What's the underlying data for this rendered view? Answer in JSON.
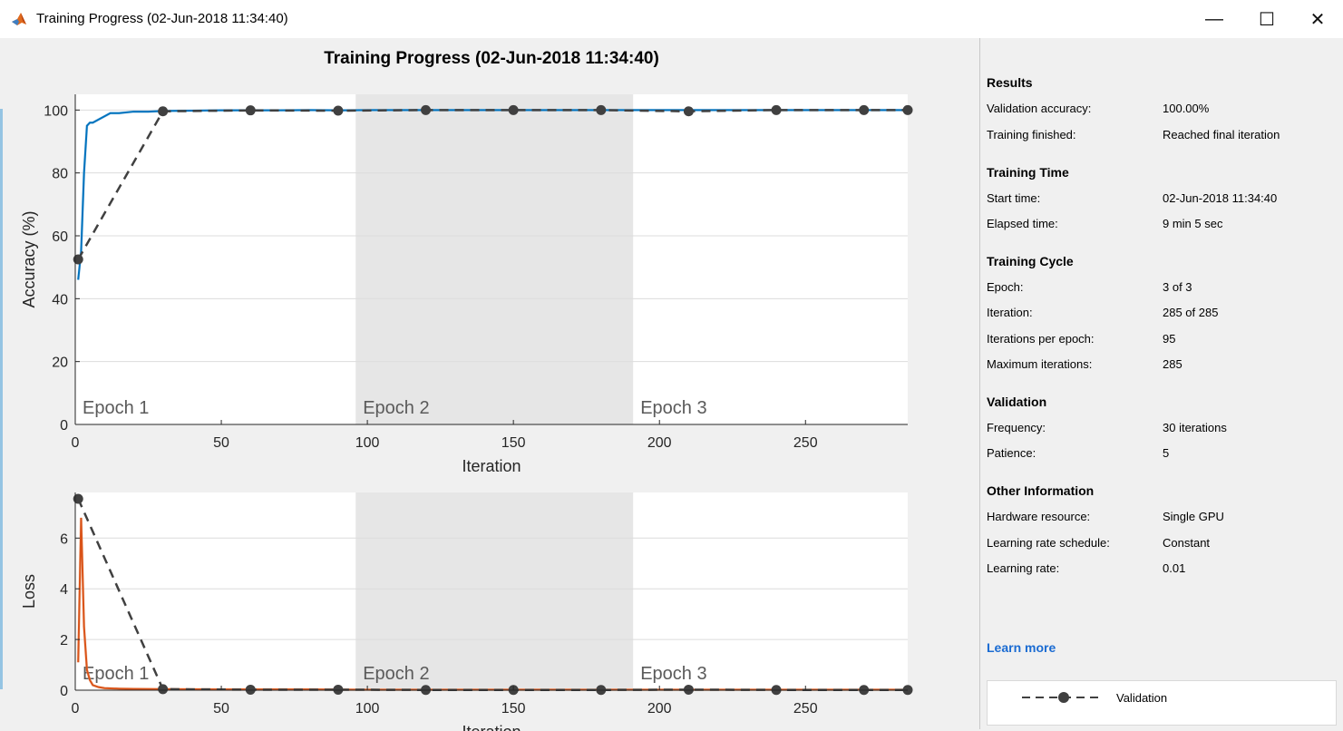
{
  "window": {
    "title": "Training Progress (02-Jun-2018 11:34:40)",
    "minimize_icon": "minimize-icon",
    "maximize_icon": "maximize-icon",
    "close_icon": "close-icon",
    "minimize_glyph": "—",
    "maximize_glyph": "☐",
    "close_glyph": "✕"
  },
  "colors": {
    "training": "#0072bd",
    "training_smoothed": "#9cc8ea",
    "loss": "#d95319",
    "loss_light": "#f2b089",
    "validation": "#404040",
    "epoch_shade": "#e6e6e6"
  },
  "chart_data": [
    {
      "type": "line",
      "title": "Training Progress (02-Jun-2018 11:34:40)",
      "xlabel": "Iteration",
      "ylabel": "Accuracy (%)",
      "xlim": [
        0,
        285
      ],
      "ylim": [
        0,
        105
      ],
      "xticks": [
        0,
        50,
        100,
        150,
        200,
        250
      ],
      "yticks": [
        0,
        20,
        40,
        60,
        80,
        100
      ],
      "grid": true,
      "epochs": [
        {
          "label": "Epoch 1",
          "start": 0,
          "end": 95,
          "shaded": false
        },
        {
          "label": "Epoch 2",
          "start": 96,
          "end": 191,
          "shaded": true
        },
        {
          "label": "Epoch 3",
          "start": 191,
          "end": 285,
          "shaded": false
        }
      ],
      "series": [
        {
          "role": "training",
          "x": [
            1,
            2,
            3,
            4,
            5,
            6,
            8,
            10,
            12,
            15,
            20,
            25,
            30,
            40,
            50,
            60,
            70,
            80,
            90,
            100,
            120,
            140,
            160,
            180,
            200,
            220,
            240,
            260,
            285
          ],
          "values": [
            46,
            55,
            80,
            95,
            96,
            96,
            97,
            98,
            99,
            99,
            99.5,
            99.5,
            99.7,
            99.8,
            99.9,
            99.9,
            99.9,
            100,
            99.9,
            100,
            100,
            100,
            100,
            100,
            100,
            100,
            100,
            100,
            100
          ]
        },
        {
          "role": "validation",
          "x": [
            1,
            30,
            60,
            90,
            120,
            150,
            180,
            210,
            240,
            270,
            285
          ],
          "values": [
            52.5,
            99.6,
            99.9,
            99.8,
            100,
            100,
            100,
            99.6,
            100,
            100,
            100
          ]
        }
      ]
    },
    {
      "type": "line",
      "xlabel": "Iteration",
      "ylabel": "Loss",
      "xlim": [
        0,
        285
      ],
      "ylim": [
        0,
        7.8
      ],
      "xticks": [
        0,
        50,
        100,
        150,
        200,
        250
      ],
      "yticks": [
        0,
        2,
        4,
        6
      ],
      "grid": true,
      "epochs": [
        {
          "label": "Epoch 1",
          "start": 0,
          "end": 95,
          "shaded": false
        },
        {
          "label": "Epoch 2",
          "start": 96,
          "end": 191,
          "shaded": true
        },
        {
          "label": "Epoch 3",
          "start": 191,
          "end": 285,
          "shaded": false
        }
      ],
      "series": [
        {
          "role": "training",
          "x": [
            1,
            2,
            3,
            4,
            5,
            6,
            8,
            10,
            15,
            20,
            30,
            50,
            80,
            100,
            150,
            200,
            250,
            285
          ],
          "values": [
            1.1,
            6.8,
            2.5,
            0.8,
            0.4,
            0.2,
            0.12,
            0.08,
            0.06,
            0.05,
            0.04,
            0.03,
            0.03,
            0.02,
            0.02,
            0.02,
            0.02,
            0.02
          ]
        },
        {
          "role": "validation",
          "x": [
            1,
            30,
            60,
            90,
            120,
            150,
            180,
            210,
            240,
            270,
            285
          ],
          "values": [
            7.55,
            0.04,
            0.02,
            0.02,
            0.01,
            0.01,
            0.01,
            0.02,
            0.01,
            0.01,
            0.01
          ]
        }
      ]
    }
  ],
  "panel": {
    "results": {
      "title": "Results",
      "validation_accuracy_label": "Validation accuracy:",
      "validation_accuracy_value": "100.00%",
      "training_finished_label": "Training finished:",
      "training_finished_value": "Reached final iteration"
    },
    "training_time": {
      "title": "Training Time",
      "start_time_label": "Start time:",
      "start_time_value": "02-Jun-2018 11:34:40",
      "elapsed_time_label": "Elapsed time:",
      "elapsed_time_value": "9 min 5 sec"
    },
    "training_cycle": {
      "title": "Training Cycle",
      "epoch_label": "Epoch:",
      "epoch_value": "3 of 3",
      "iteration_label": "Iteration:",
      "iteration_value": "285 of 285",
      "iterations_per_epoch_label": "Iterations per epoch:",
      "iterations_per_epoch_value": "95",
      "maximum_iterations_label": "Maximum iterations:",
      "maximum_iterations_value": "285"
    },
    "validation": {
      "title": "Validation",
      "frequency_label": "Frequency:",
      "frequency_value": "30 iterations",
      "patience_label": "Patience:",
      "patience_value": "5"
    },
    "other_information": {
      "title": "Other Information",
      "hardware_resource_label": "Hardware resource:",
      "hardware_resource_value": "Single GPU",
      "learning_rate_schedule_label": "Learning rate schedule:",
      "learning_rate_schedule_value": "Constant",
      "learning_rate_label": "Learning rate:",
      "learning_rate_value": "0.01"
    },
    "learn_more": "Learn more",
    "legend": {
      "validation_label": "Validation"
    }
  }
}
